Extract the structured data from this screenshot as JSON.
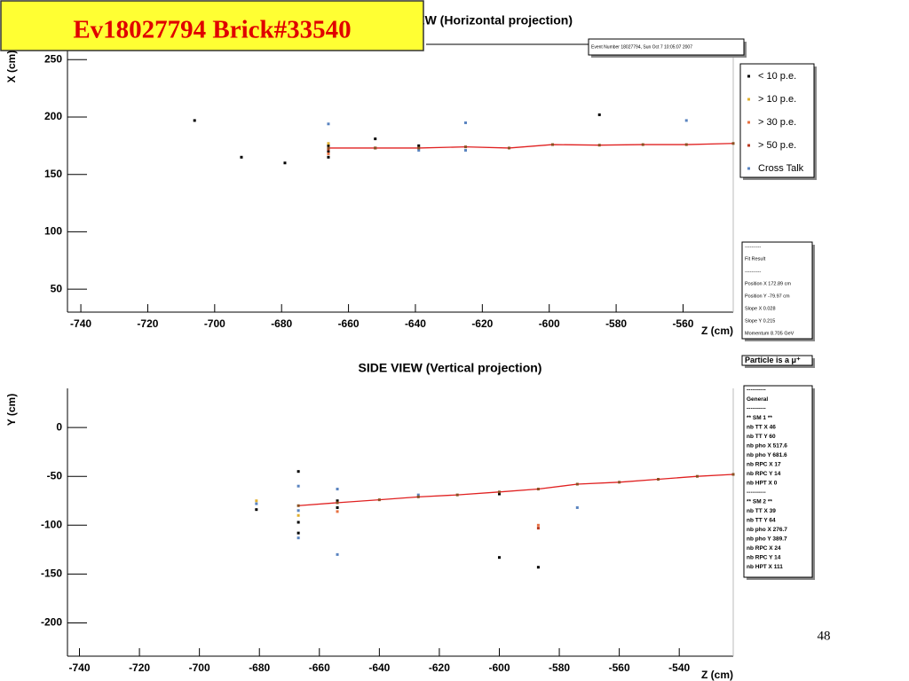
{
  "header_label": "Ev18027794 Brick#33540",
  "page_number": "48",
  "chart_data": [
    {
      "type": "scatter",
      "title": "TOP VIEW (Horizontal projection)",
      "x_label": "Z (cm)",
      "y_label": "X (cm)",
      "xlim": [
        -744,
        -545
      ],
      "ylim": [
        30,
        268
      ],
      "xticks": [
        -740,
        -720,
        -700,
        -680,
        -660,
        -640,
        -620,
        -600,
        -580,
        -560
      ],
      "yticks": [
        50,
        100,
        150,
        200,
        250
      ],
      "legend": "right",
      "series": [
        {
          "name": "< 10 p.e.",
          "color": "#000000",
          "x": [
            -706,
            -692,
            -679,
            -666,
            -666,
            -666,
            -652,
            -652,
            -639,
            -585
          ],
          "values": [
            197,
            165,
            160,
            165,
            170,
            175,
            181,
            173,
            175,
            202
          ]
        },
        {
          "name": "> 10 p.e.",
          "color": "#e0b030",
          "x": [
            -666
          ],
          "values": [
            177
          ]
        },
        {
          "name": "> 30 p.e.",
          "color": "#e87040",
          "x": [
            -666
          ],
          "values": [
            168
          ]
        },
        {
          "name": "> 50 p.e.",
          "color": "#b83820",
          "x": [
            -666
          ],
          "values": [
            172
          ]
        },
        {
          "name": "Cross Talk",
          "color": "#5a84c0",
          "x": [
            -666,
            -625,
            -559,
            -639,
            -625
          ],
          "values": [
            194,
            195,
            197,
            171,
            171
          ]
        },
        {
          "mode": "line",
          "color": "#e02020",
          "x": [
            -666,
            -652,
            -639,
            -625,
            -612,
            -599,
            -585,
            -572,
            -559,
            -545
          ],
          "values": [
            173,
            173,
            173,
            174,
            173,
            176,
            175.5,
            176,
            176,
            177
          ]
        }
      ]
    },
    {
      "type": "scatter",
      "title": "SIDE VIEW (Vertical projection)",
      "x_label": "Z (cm)",
      "y_label": "Y (cm)",
      "xlim": [
        -744,
        -522
      ],
      "ylim": [
        -234,
        40
      ],
      "xticks": [
        -740,
        -720,
        -700,
        -680,
        -660,
        -640,
        -620,
        -600,
        -580,
        -560,
        -540
      ],
      "yticks": [
        -200,
        -150,
        -100,
        -50,
        0
      ],
      "series": [
        {
          "color": "#000000",
          "x": [
            -681,
            -667,
            -667,
            -667,
            -654,
            -654,
            -600,
            -600,
            -587
          ],
          "values": [
            -84,
            -45,
            -97,
            -108,
            -75,
            -82,
            -68,
            -133,
            -143
          ]
        },
        {
          "color": "#e0b030",
          "x": [
            -681,
            -667
          ],
          "values": [
            -75,
            -90
          ]
        },
        {
          "color": "#e87040",
          "x": [
            -587,
            -654
          ],
          "values": [
            -100,
            -86
          ]
        },
        {
          "color": "#b83820",
          "x": [
            -587
          ],
          "values": [
            -103
          ]
        },
        {
          "color": "#5a84c0",
          "x": [
            -681,
            -667,
            -667,
            -667,
            -654,
            -654,
            -627,
            -574
          ],
          "values": [
            -78,
            -60,
            -113,
            -85,
            -63,
            -130,
            -69,
            -82
          ]
        },
        {
          "mode": "line",
          "color": "#e02020",
          "x": [
            -667,
            -654,
            -640,
            -627,
            -614,
            -600,
            -587,
            -574,
            -560,
            -547,
            -534,
            -522
          ],
          "values": [
            -80,
            -77,
            -74,
            -71,
            -69,
            -66,
            -63,
            -58,
            -56,
            -53,
            -50,
            -48
          ]
        }
      ]
    }
  ],
  "panels": [
    {
      "lines": [
        "Event Number 18027794, Sun Oct  7 10:05:07 2007"
      ]
    },
    {
      "lines": [
        "----------",
        "Fit Result",
        "----------",
        "Position X   172.89 cm",
        "Position Y   -79.97 cm",
        "Slope X  0.028",
        "Slope Y  0.215",
        "Momentum  8.705 GeV"
      ]
    },
    {
      "lines": [
        "Particle is a μ⁺"
      ]
    },
    {
      "lines": [
        "----------",
        "General",
        "----------",
        "** SM 1 **",
        "nb TT X 46",
        "nb TT Y 60",
        "nb pho X  517.6",
        "nb pho Y  681.6",
        "nb RPC X 17",
        "nb RPC Y 14",
        "nb HPT X 0",
        "----------",
        "** SM 2 **",
        "nb TT X 39",
        "nb TT Y 64",
        "nb pho X  276.7",
        "nb pho Y  389.7",
        "nb RPC X 24",
        "nb RPC Y 14",
        "nb HPT X 111"
      ]
    }
  ]
}
